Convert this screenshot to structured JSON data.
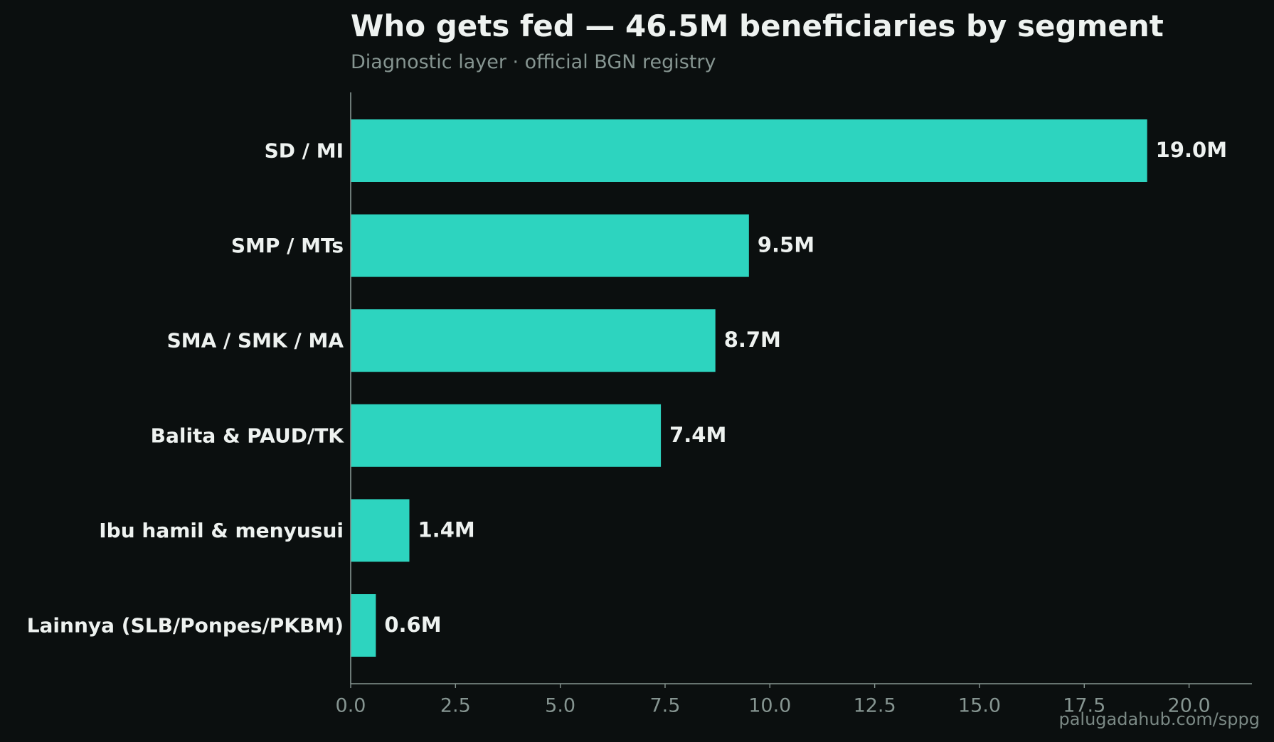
{
  "chart_data": {
    "type": "bar",
    "orientation": "horizontal",
    "title": "Who gets fed — 46.5M beneficiaries by segment",
    "subtitle": "Diagnostic layer · official BGN registry",
    "categories": [
      "SD / MI",
      "SMP / MTs",
      "SMA / SMK / MA",
      "Balita & PAUD/TK",
      "Ibu hamil & menyusui",
      "Lainnya (SLB/Ponpes/PKBM)"
    ],
    "values": [
      19.0,
      9.5,
      8.7,
      7.4,
      1.4,
      0.6
    ],
    "value_labels": [
      "19.0M",
      "9.5M",
      "8.7M",
      "7.4M",
      "1.4M",
      "0.6M"
    ],
    "xlabel": "",
    "ylabel": "",
    "xlim": [
      0,
      21.5
    ],
    "xticks": [
      0,
      2.5,
      5,
      7.5,
      10,
      12.5,
      15,
      17.5,
      20
    ],
    "xtick_labels": [
      "0.0",
      "2.5",
      "5.0",
      "7.5",
      "10.0",
      "12.5",
      "15.0",
      "17.5",
      "20.0"
    ],
    "grid": false,
    "legend": "none",
    "colors": {
      "bar": "#2dd4bf",
      "background": "#0b0f0f",
      "axis": "#869591",
      "text": "#eef2f0",
      "muted_text": "#869591"
    }
  },
  "footer": {
    "credit": "palugadahub.com/sppg"
  }
}
